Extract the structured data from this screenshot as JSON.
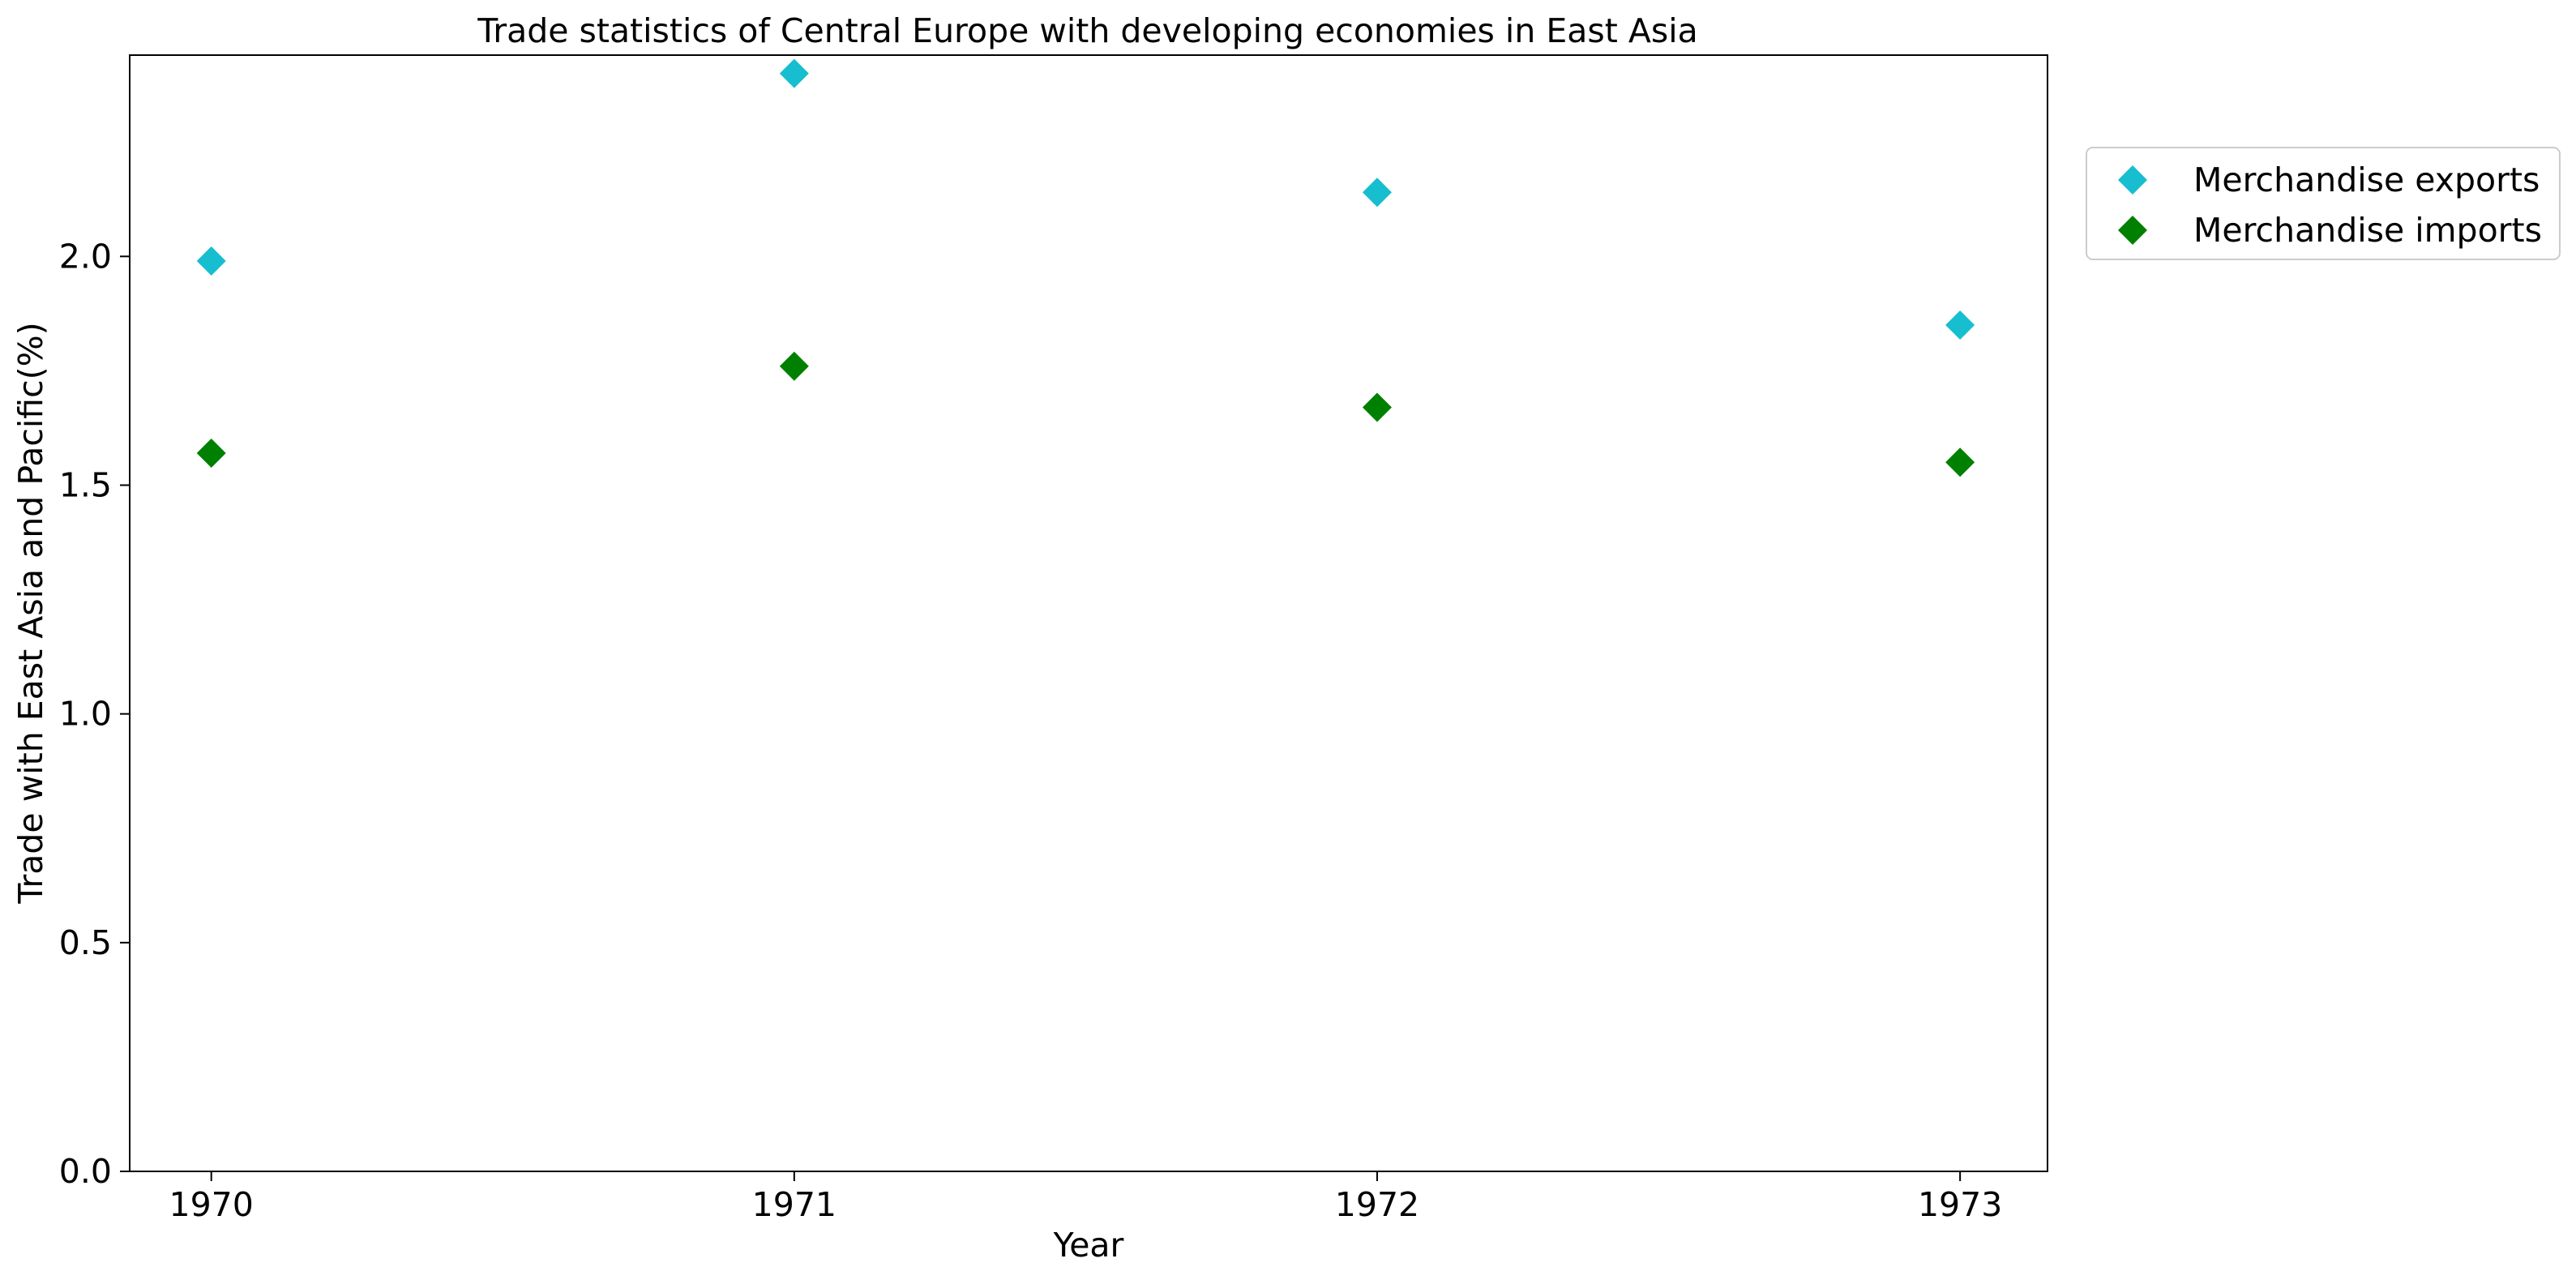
{
  "chart_data": {
    "type": "scatter",
    "title": "Trade statistics of Central Europe with developing economies in East Asia",
    "xlabel": "Year",
    "ylabel": "Trade with East Asia and Pacific(%)",
    "x": [
      1970,
      1971,
      1972,
      1973
    ],
    "x_tick_labels": [
      "1970",
      "1971",
      "1972",
      "1973"
    ],
    "y_ticks": [
      0.0,
      0.5,
      1.0,
      1.5,
      2.0
    ],
    "y_tick_labels": [
      "0.0",
      "0.5",
      "1.0",
      "1.5",
      "2.0"
    ],
    "ylim": [
      0,
      2.44
    ],
    "xlim": [
      1969.86,
      1973.15
    ],
    "grid": false,
    "legend_position": "outside-top-right",
    "marker": "diamond",
    "series": [
      {
        "name": "Merchandise exports",
        "color": "#17becf",
        "values": [
          1.99,
          2.4,
          2.14,
          1.85
        ]
      },
      {
        "name": "Merchandise imports",
        "color": "#008000",
        "values": [
          1.57,
          1.76,
          1.67,
          1.55
        ]
      }
    ]
  }
}
